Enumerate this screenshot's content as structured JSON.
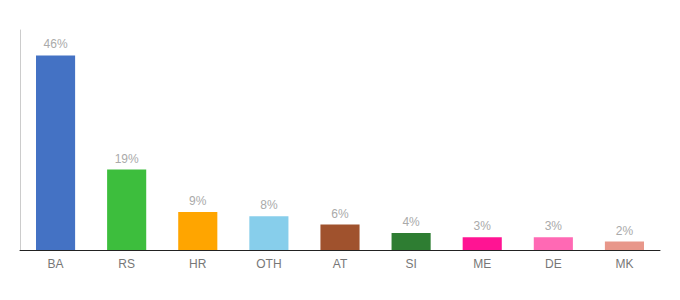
{
  "chart_data": {
    "type": "bar",
    "categories": [
      "BA",
      "RS",
      "HR",
      "OTH",
      "AT",
      "SI",
      "ME",
      "DE",
      "MK"
    ],
    "values": [
      46,
      19,
      9,
      8,
      6,
      4,
      3,
      3,
      2
    ],
    "value_labels": [
      "46%",
      "19%",
      "9%",
      "8%",
      "6%",
      "4%",
      "3%",
      "3%",
      "2%"
    ],
    "colors": [
      "#4472C4",
      "#3DBE3D",
      "#FFA500",
      "#87CEEB",
      "#A0522D",
      "#2E7D32",
      "#FF1493",
      "#FF69B4",
      "#E8978A"
    ],
    "ylim": [
      0,
      52
    ],
    "grid": false,
    "data_labels": true,
    "tick_labels": "x"
  }
}
